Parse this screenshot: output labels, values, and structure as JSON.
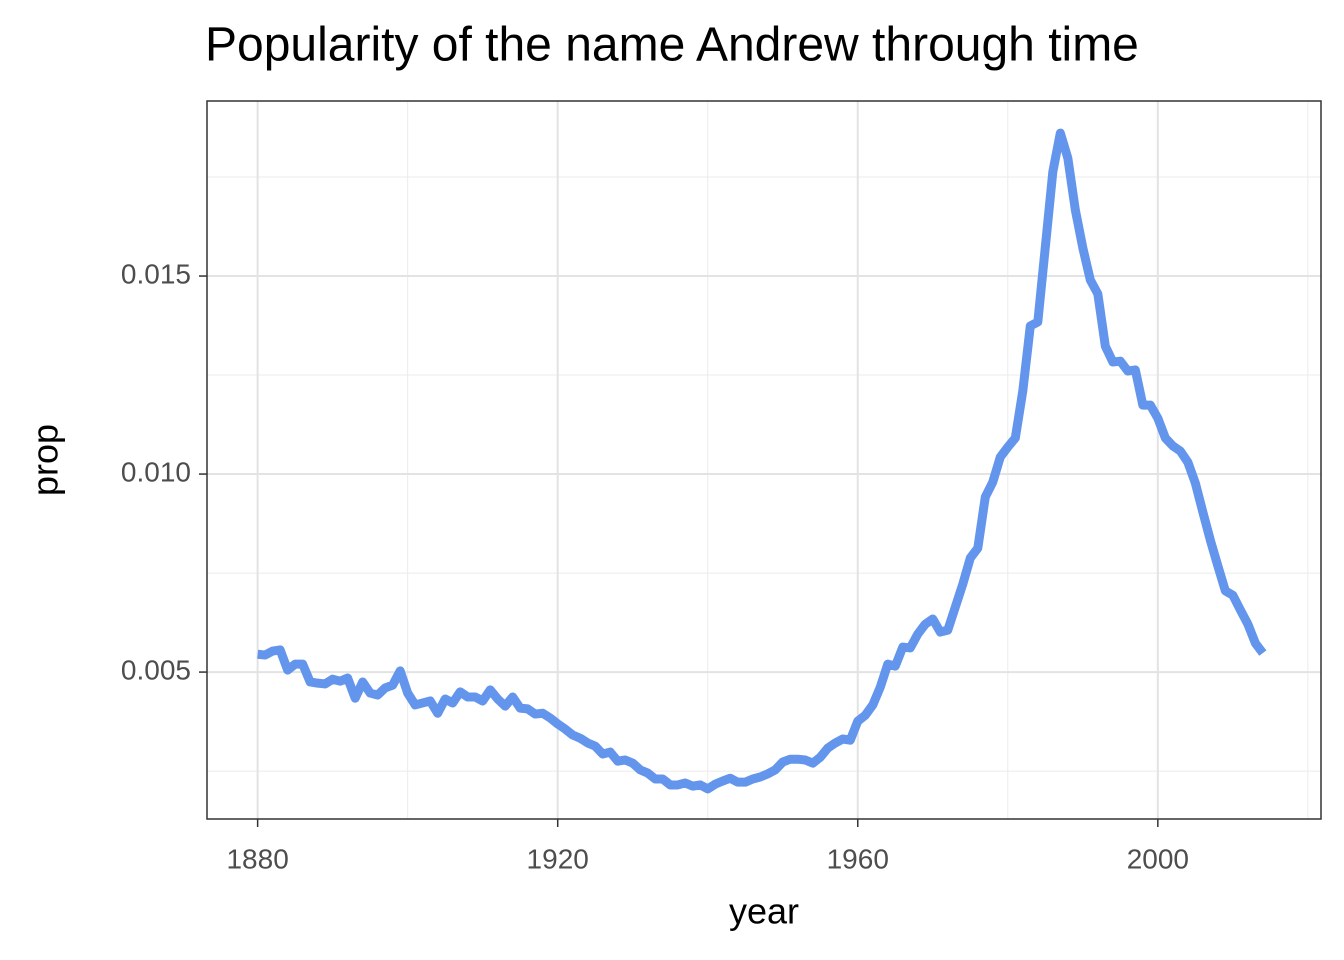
{
  "chart_data": {
    "type": "line",
    "title": "Popularity of the name Andrew through time",
    "x_label": "year",
    "y_label": "prop",
    "color": "#6495ED",
    "x": [
      1880,
      1881,
      1882,
      1883,
      1884,
      1885,
      1886,
      1887,
      1888,
      1889,
      1890,
      1891,
      1892,
      1893,
      1894,
      1895,
      1896,
      1897,
      1898,
      1899,
      1900,
      1901,
      1902,
      1903,
      1904,
      1905,
      1906,
      1907,
      1908,
      1909,
      1910,
      1911,
      1912,
      1913,
      1914,
      1915,
      1916,
      1917,
      1918,
      1919,
      1920,
      1921,
      1922,
      1923,
      1924,
      1925,
      1926,
      1927,
      1928,
      1929,
      1930,
      1931,
      1932,
      1933,
      1934,
      1935,
      1936,
      1937,
      1938,
      1939,
      1940,
      1941,
      1942,
      1943,
      1944,
      1945,
      1946,
      1947,
      1948,
      1949,
      1950,
      1951,
      1952,
      1953,
      1954,
      1955,
      1956,
      1957,
      1958,
      1959,
      1960,
      1961,
      1962,
      1963,
      1964,
      1965,
      1966,
      1967,
      1968,
      1969,
      1970,
      1971,
      1972,
      1973,
      1974,
      1975,
      1976,
      1977,
      1978,
      1979,
      1980,
      1981,
      1982,
      1983,
      1984,
      1985,
      1986,
      1987,
      1988,
      1989,
      1990,
      1991,
      1992,
      1993,
      1994,
      1995,
      1996,
      1997,
      1998,
      1999,
      2000,
      2001,
      2002,
      2003,
      2004,
      2005,
      2006,
      2007,
      2008,
      2009,
      2010,
      2011,
      2012,
      2013,
      2014
    ],
    "values": [
      0.00545,
      0.00543,
      0.00553,
      0.00556,
      0.00505,
      0.0052,
      0.0052,
      0.00475,
      0.00472,
      0.0047,
      0.00482,
      0.00477,
      0.00485,
      0.00434,
      0.00475,
      0.00447,
      0.00442,
      0.0046,
      0.00467,
      0.00503,
      0.00447,
      0.00417,
      0.00422,
      0.00427,
      0.00396,
      0.00432,
      0.00422,
      0.0045,
      0.00437,
      0.00437,
      0.00427,
      0.00455,
      0.00432,
      0.00414,
      0.00437,
      0.00409,
      0.00407,
      0.00394,
      0.00396,
      0.00384,
      0.00369,
      0.00356,
      0.00341,
      0.00333,
      0.00321,
      0.00313,
      0.00293,
      0.00298,
      0.00275,
      0.00278,
      0.0027,
      0.00253,
      0.00245,
      0.0023,
      0.0023,
      0.00215,
      0.00215,
      0.0022,
      0.00212,
      0.00215,
      0.00205,
      0.00217,
      0.00225,
      0.00232,
      0.00222,
      0.00222,
      0.0023,
      0.00235,
      0.00243,
      0.00253,
      0.00273,
      0.0028,
      0.0028,
      0.00278,
      0.0027,
      0.00285,
      0.00308,
      0.00321,
      0.00331,
      0.00328,
      0.00376,
      0.00391,
      0.00417,
      0.00462,
      0.0052,
      0.00515,
      0.00563,
      0.00561,
      0.00596,
      0.00621,
      0.00634,
      0.00601,
      0.00606,
      0.00664,
      0.00722,
      0.00788,
      0.00813,
      0.00942,
      0.0098,
      0.01043,
      0.01068,
      0.01091,
      0.0121,
      0.01374,
      0.01384,
      0.01573,
      0.01763,
      0.01861,
      0.01798,
      0.01667,
      0.01571,
      0.0149,
      0.01455,
      0.01323,
      0.01283,
      0.01285,
      0.0126,
      0.01263,
      0.01174,
      0.01174,
      0.01141,
      0.01091,
      0.01071,
      0.01058,
      0.0103,
      0.00977,
      0.00904,
      0.00833,
      0.00768,
      0.00705,
      0.00694,
      0.00657,
      0.00621,
      0.00573,
      0.00548
    ],
    "xlim": [
      1873.25,
      2021.75
    ],
    "ylim": [
      0.00129,
      0.01942
    ],
    "xticks": [
      1880,
      1920,
      1960,
      2000
    ],
    "yticks": [
      0.005,
      {
        "value": 0.01,
        "label": "0.010"
      },
      0.015
    ],
    "x_minor_grid": [
      1900,
      1940,
      1980,
      2020
    ],
    "y_minor_grid": [
      0.0025,
      0.0075,
      0.0125,
      0.0175
    ],
    "grid": true
  }
}
